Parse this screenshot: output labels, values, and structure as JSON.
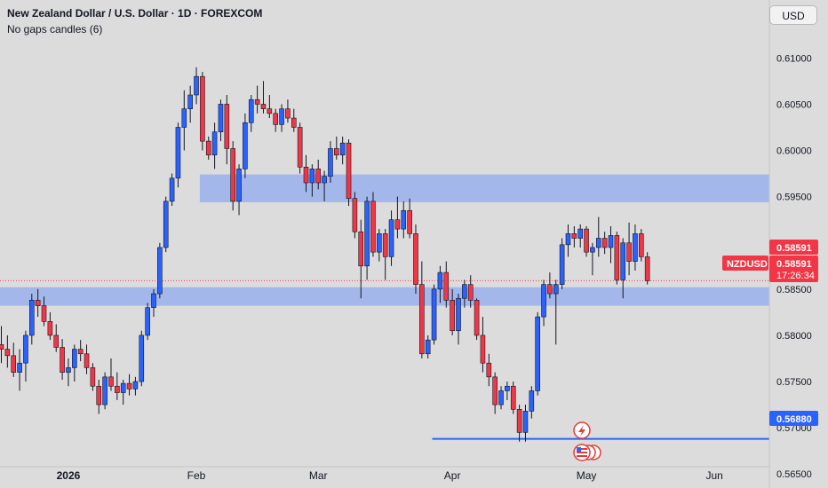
{
  "header": {
    "title": "New Zealand Dollar / U.S. Dollar · 1D · FOREXCOM",
    "subtitle": "No gaps candles (6)",
    "currency_button": "USD"
  },
  "chart_data": {
    "type": "candlestick",
    "symbol": "NZDUSD",
    "ylim": [
      0.5635,
      0.612
    ],
    "y_ticks": [
      "0.61000",
      "0.60500",
      "0.60000",
      "0.59500",
      "0.59000",
      "0.58500",
      "0.58000",
      "0.57500",
      "0.57000",
      "0.56500"
    ],
    "x_labels": [
      {
        "label": "2026",
        "bar": 11
      },
      {
        "label": "Feb",
        "bar": 32
      },
      {
        "label": "Mar",
        "bar": 52
      },
      {
        "label": "Apr",
        "bar": 74
      },
      {
        "label": "May",
        "bar": 96
      },
      {
        "label": "Jun",
        "bar": 117
      }
    ],
    "current_price": "0.58591",
    "last_price_label": "0.58591",
    "countdown": "17:26:34",
    "support_level": "0.56880",
    "support_from_bar": 71,
    "zones": [
      {
        "from_bar": 33,
        "low": 0.5944,
        "high": 0.5974
      },
      {
        "from_bar": 0,
        "low": 0.5832,
        "high": 0.5852
      }
    ],
    "candles": [
      [
        0.579,
        0.581,
        0.577,
        0.5785
      ],
      [
        0.5785,
        0.58,
        0.5765,
        0.5778
      ],
      [
        0.5778,
        0.5792,
        0.5755,
        0.576
      ],
      [
        0.576,
        0.5785,
        0.574,
        0.577
      ],
      [
        0.577,
        0.5805,
        0.575,
        0.58
      ],
      [
        0.58,
        0.5845,
        0.579,
        0.5838
      ],
      [
        0.5838,
        0.585,
        0.582,
        0.5832
      ],
      [
        0.5832,
        0.5842,
        0.581,
        0.5815
      ],
      [
        0.5815,
        0.5825,
        0.5795,
        0.58
      ],
      [
        0.58,
        0.5812,
        0.5782,
        0.5787
      ],
      [
        0.5787,
        0.5796,
        0.5752,
        0.576
      ],
      [
        0.576,
        0.5775,
        0.5745,
        0.5765
      ],
      [
        0.5765,
        0.579,
        0.575,
        0.5785
      ],
      [
        0.5785,
        0.5795,
        0.5772,
        0.578
      ],
      [
        0.578,
        0.579,
        0.5758,
        0.5765
      ],
      [
        0.5765,
        0.577,
        0.574,
        0.5745
      ],
      [
        0.5745,
        0.5752,
        0.5715,
        0.5725
      ],
      [
        0.5725,
        0.576,
        0.572,
        0.5755
      ],
      [
        0.5755,
        0.5775,
        0.574,
        0.5745
      ],
      [
        0.5745,
        0.576,
        0.573,
        0.5738
      ],
      [
        0.5738,
        0.5752,
        0.5725,
        0.5748
      ],
      [
        0.5748,
        0.5758,
        0.5735,
        0.5742
      ],
      [
        0.5742,
        0.5755,
        0.5735,
        0.575
      ],
      [
        0.575,
        0.5805,
        0.5745,
        0.58
      ],
      [
        0.58,
        0.5835,
        0.5795,
        0.583
      ],
      [
        0.583,
        0.585,
        0.582,
        0.5845
      ],
      [
        0.5845,
        0.59,
        0.584,
        0.5895
      ],
      [
        0.5895,
        0.595,
        0.589,
        0.5945
      ],
      [
        0.5945,
        0.5975,
        0.594,
        0.597
      ],
      [
        0.597,
        0.603,
        0.596,
        0.6025
      ],
      [
        0.6025,
        0.6065,
        0.6,
        0.6045
      ],
      [
        0.6045,
        0.607,
        0.603,
        0.606
      ],
      [
        0.606,
        0.609,
        0.605,
        0.608
      ],
      [
        0.608,
        0.6085,
        0.6,
        0.601
      ],
      [
        0.601,
        0.6015,
        0.599,
        0.5995
      ],
      [
        0.5995,
        0.603,
        0.598,
        0.602
      ],
      [
        0.602,
        0.6055,
        0.601,
        0.605
      ],
      [
        0.605,
        0.606,
        0.5985,
        0.6002
      ],
      [
        0.6002,
        0.601,
        0.5935,
        0.5945
      ],
      [
        0.5945,
        0.5985,
        0.593,
        0.598
      ],
      [
        0.598,
        0.604,
        0.597,
        0.603
      ],
      [
        0.603,
        0.606,
        0.602,
        0.6055
      ],
      [
        0.6055,
        0.607,
        0.604,
        0.605
      ],
      [
        0.605,
        0.6075,
        0.604,
        0.6045
      ],
      [
        0.6045,
        0.606,
        0.6035,
        0.604
      ],
      [
        0.604,
        0.6045,
        0.602,
        0.6028
      ],
      [
        0.6028,
        0.605,
        0.602,
        0.6045
      ],
      [
        0.6045,
        0.6055,
        0.603,
        0.6035
      ],
      [
        0.6035,
        0.6045,
        0.602,
        0.6025
      ],
      [
        0.6025,
        0.603,
        0.5975,
        0.5982
      ],
      [
        0.5982,
        0.5995,
        0.5955,
        0.5965
      ],
      [
        0.5965,
        0.5985,
        0.595,
        0.598
      ],
      [
        0.598,
        0.599,
        0.5958,
        0.5965
      ],
      [
        0.5965,
        0.5978,
        0.5945,
        0.5972
      ],
      [
        0.5972,
        0.601,
        0.5965,
        0.6002
      ],
      [
        0.6002,
        0.6015,
        0.599,
        0.5995
      ],
      [
        0.5995,
        0.6015,
        0.5985,
        0.6008
      ],
      [
        0.6008,
        0.6012,
        0.594,
        0.5948
      ],
      [
        0.5948,
        0.5955,
        0.5905,
        0.5912
      ],
      [
        0.5912,
        0.5925,
        0.584,
        0.5875
      ],
      [
        0.5875,
        0.595,
        0.586,
        0.5945
      ],
      [
        0.5945,
        0.5955,
        0.5885,
        0.589
      ],
      [
        0.589,
        0.5915,
        0.588,
        0.591
      ],
      [
        0.591,
        0.5915,
        0.586,
        0.5885
      ],
      [
        0.5885,
        0.5935,
        0.5875,
        0.5925
      ],
      [
        0.5925,
        0.595,
        0.5905,
        0.5915
      ],
      [
        0.5915,
        0.5945,
        0.5905,
        0.5935
      ],
      [
        0.5935,
        0.5948,
        0.5905,
        0.591
      ],
      [
        0.591,
        0.592,
        0.5845,
        0.5855
      ],
      [
        0.5855,
        0.588,
        0.5775,
        0.578
      ],
      [
        0.578,
        0.58,
        0.5775,
        0.5795
      ],
      [
        0.5795,
        0.5855,
        0.579,
        0.585
      ],
      [
        0.585,
        0.5875,
        0.5835,
        0.5868
      ],
      [
        0.5868,
        0.588,
        0.583,
        0.5838
      ],
      [
        0.5838,
        0.585,
        0.58,
        0.5805
      ],
      [
        0.5805,
        0.5845,
        0.579,
        0.584
      ],
      [
        0.584,
        0.586,
        0.583,
        0.5855
      ],
      [
        0.5855,
        0.5865,
        0.583,
        0.5838
      ],
      [
        0.5838,
        0.584,
        0.5795,
        0.58
      ],
      [
        0.58,
        0.582,
        0.576,
        0.577
      ],
      [
        0.577,
        0.578,
        0.5745,
        0.5755
      ],
      [
        0.5755,
        0.576,
        0.5715,
        0.5725
      ],
      [
        0.5725,
        0.5745,
        0.572,
        0.574
      ],
      [
        0.574,
        0.575,
        0.573,
        0.5745
      ],
      [
        0.5745,
        0.575,
        0.5715,
        0.572
      ],
      [
        0.572,
        0.5725,
        0.5685,
        0.5695
      ],
      [
        0.5695,
        0.5725,
        0.5685,
        0.5718
      ],
      [
        0.5718,
        0.5745,
        0.571,
        0.574
      ],
      [
        0.574,
        0.5825,
        0.5735,
        0.582
      ],
      [
        0.582,
        0.586,
        0.581,
        0.5855
      ],
      [
        0.5855,
        0.5868,
        0.584,
        0.5845
      ],
      [
        0.5845,
        0.586,
        0.579,
        0.5855
      ],
      [
        0.5855,
        0.5905,
        0.585,
        0.5898
      ],
      [
        0.5898,
        0.592,
        0.5885,
        0.591
      ],
      [
        0.591,
        0.5918,
        0.5895,
        0.5905
      ],
      [
        0.5905,
        0.592,
        0.5895,
        0.5915
      ],
      [
        0.5915,
        0.5918,
        0.5885,
        0.589
      ],
      [
        0.589,
        0.59,
        0.5865,
        0.5895
      ],
      [
        0.5895,
        0.5928,
        0.5885,
        0.5905
      ],
      [
        0.5905,
        0.5912,
        0.5888,
        0.5895
      ],
      [
        0.5895,
        0.5918,
        0.5878,
        0.5908
      ],
      [
        0.5908,
        0.5912,
        0.5855,
        0.586
      ],
      [
        0.586,
        0.5905,
        0.584,
        0.59
      ],
      [
        0.59,
        0.5922,
        0.5865,
        0.588
      ],
      [
        0.588,
        0.592,
        0.587,
        0.591
      ],
      [
        0.591,
        0.5915,
        0.588,
        0.5885
      ],
      [
        0.5885,
        0.589,
        0.5855,
        0.5859
      ]
    ]
  }
}
